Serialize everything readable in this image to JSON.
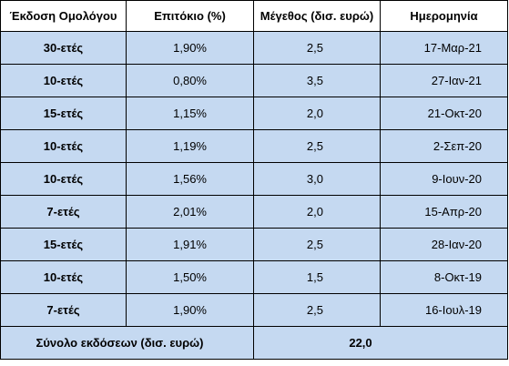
{
  "table": {
    "headers": [
      "Έκδοση Ομολόγου",
      "Επιτόκιο (%)",
      "Μέγεθος (δισ. ευρώ)",
      "Ημερομηνία"
    ],
    "rows": [
      {
        "issue": "30-ετές",
        "rate": "1,90%",
        "size": "2,5",
        "date": "17-Μαρ-21"
      },
      {
        "issue": "10-ετές",
        "rate": "0,80%",
        "size": "3,5",
        "date": "27-Ιαν-21"
      },
      {
        "issue": "15-ετές",
        "rate": "1,15%",
        "size": "2,0",
        "date": "21-Οκτ-20"
      },
      {
        "issue": "10-ετές",
        "rate": "1,19%",
        "size": "2,5",
        "date": "2-Σεπ-20"
      },
      {
        "issue": "10-ετές",
        "rate": "1,56%",
        "size": "3,0",
        "date": "9-Ιουν-20"
      },
      {
        "issue": "7-ετές",
        "rate": "2,01%",
        "size": "2,0",
        "date": "15-Απρ-20"
      },
      {
        "issue": "15-ετές",
        "rate": "1,91%",
        "size": "2,5",
        "date": "28-Ιαν-20"
      },
      {
        "issue": "10-ετές",
        "rate": "1,50%",
        "size": "1,5",
        "date": "8-Οκτ-19"
      },
      {
        "issue": "7-ετές",
        "rate": "1,90%",
        "size": "2,5",
        "date": "16-Ιουλ-19"
      }
    ],
    "total": {
      "label": "Σύνολο εκδόσεων (δισ. ευρώ)",
      "value": "22,0"
    }
  },
  "colors": {
    "row_fill": "#c5d9f1",
    "header_fill": "#ffffff",
    "border": "#000000"
  }
}
